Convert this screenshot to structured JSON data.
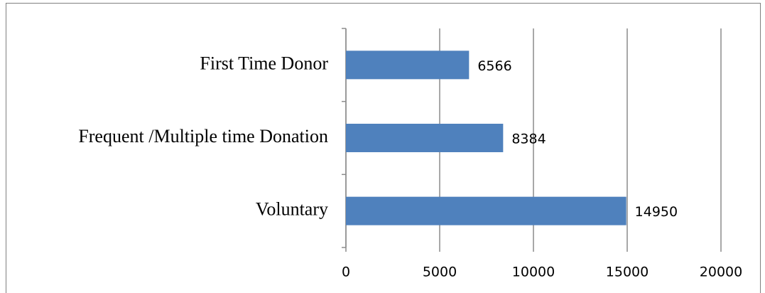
{
  "chart_data": {
    "type": "bar",
    "orientation": "horizontal",
    "categories": [
      "First Time Donor",
      "Frequent /Multiple time Donation",
      "Voluntary"
    ],
    "values": [
      6566,
      8384,
      14950
    ],
    "color": "#4f81bd",
    "xlim": [
      0,
      20000
    ],
    "xticks": [
      0,
      5000,
      10000,
      15000,
      20000
    ],
    "grid": true
  }
}
